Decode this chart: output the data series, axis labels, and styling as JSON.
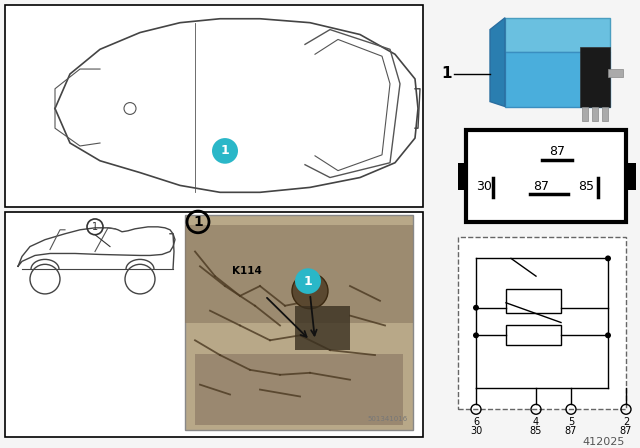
{
  "bg_color": "#f5f5f5",
  "white": "#ffffff",
  "black": "#000000",
  "teal": "#2ab7c8",
  "dark_line": "#333333",
  "gray_line": "#888888",
  "relay_blue_top": "#5ab8e0",
  "relay_blue_side": "#3a8fc0",
  "relay_dark": "#2a2a2a",
  "pin_gray": "#aaaaaa",
  "photo_bg": "#b8a888",
  "photo_dark": "#6a5840",
  "diagram_num": "412025",
  "photo_num": "501341016"
}
